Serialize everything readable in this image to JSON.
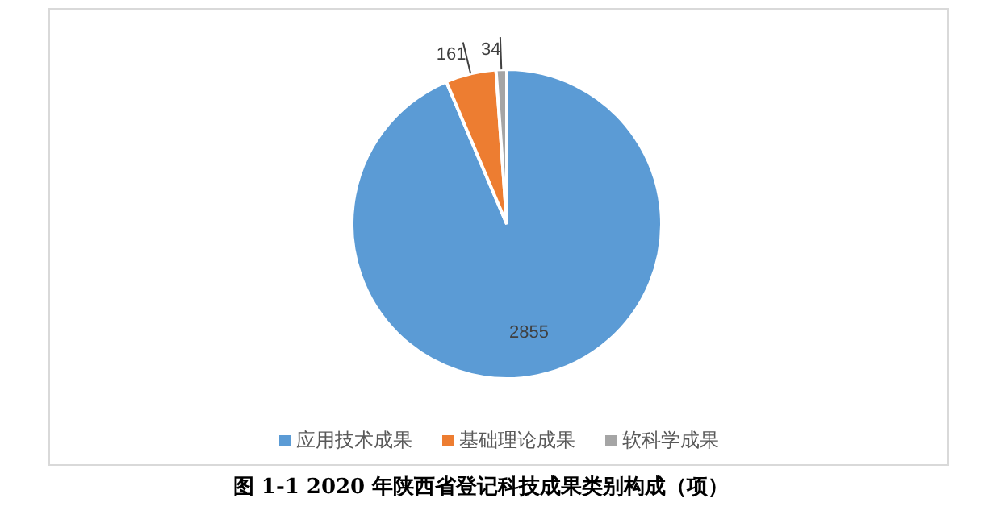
{
  "chart_data": {
    "type": "pie",
    "categories": [
      "应用技术成果",
      "基础理论成果",
      "软科学成果"
    ],
    "values": [
      2855,
      161,
      34
    ],
    "colors": [
      "#5b9bd5",
      "#ed7d31",
      "#a5a5a5"
    ],
    "data_labels": true,
    "legend": "bottom",
    "annotations": [
      "图 1-1  2020 年陕西省登记科技成果类别构成（项）"
    ]
  }
}
